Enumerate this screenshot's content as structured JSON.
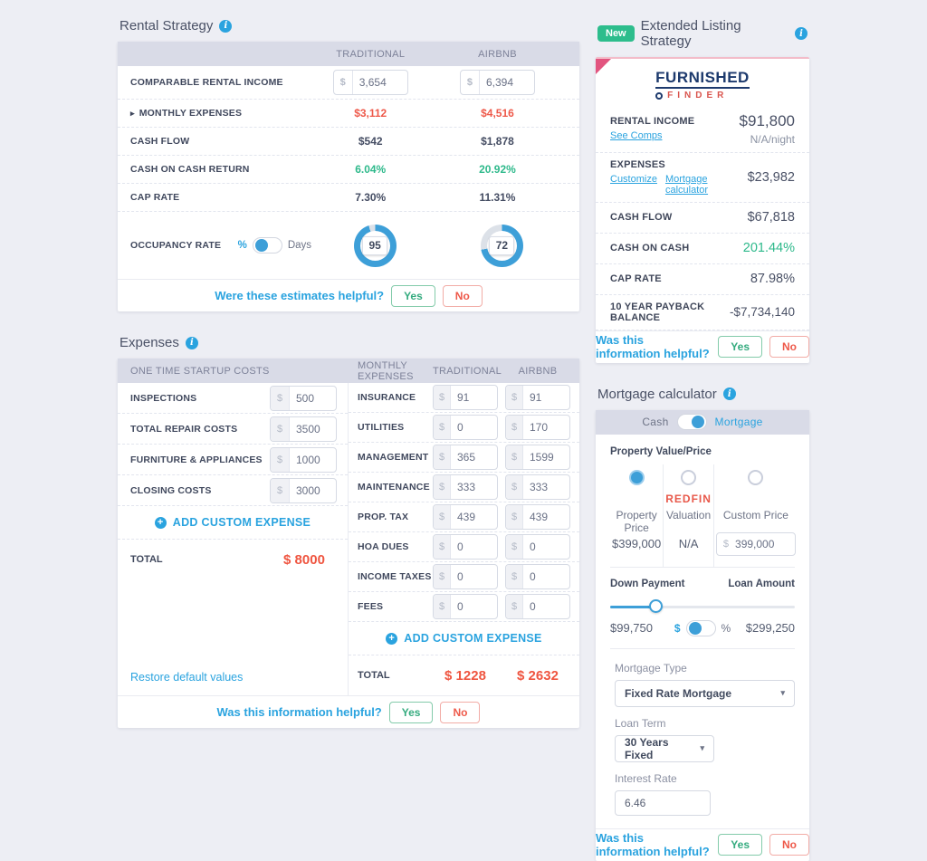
{
  "accent_colors": {
    "blue": "#2aa3df",
    "toggle_blue": "#3d9fd8",
    "red": "#ee594a",
    "green": "#2eb98b",
    "pink_corner": "#e2547f",
    "badge_green": "#2dbd8c"
  },
  "rental_strategy": {
    "title": "Rental Strategy",
    "col_traditional": "TRADITIONAL",
    "col_airbnb": "AIRBNB",
    "income": {
      "label": "COMPARABLE RENTAL INCOME",
      "currency": "$",
      "traditional": "3,654",
      "airbnb": "6,394"
    },
    "rows": [
      {
        "label": "MONTHLY EXPENSES",
        "traditional": "$3,112",
        "airbnb": "$4,516"
      },
      {
        "label": "CASH FLOW",
        "traditional": "$542",
        "airbnb": "$1,878"
      },
      {
        "label": "CASH ON CASH RETURN",
        "traditional": "6.04%",
        "airbnb": "20.92%"
      },
      {
        "label": "CAP RATE",
        "traditional": "7.30%",
        "airbnb": "11.31%"
      }
    ],
    "occupancy": {
      "label": "OCCUPANCY RATE",
      "unit_percent": "%",
      "unit_days": "Days",
      "traditional": 95,
      "airbnb": 72
    },
    "feedback": {
      "question": "Were these estimates helpful?",
      "yes": "Yes",
      "no": "No"
    }
  },
  "extended_listing": {
    "badge": "New",
    "title": "Extended Listing Strategy",
    "logo_top": "FURNISHED",
    "logo_bottom": "FINDER",
    "rental_income": {
      "label": "RENTAL INCOME",
      "link": "See Comps",
      "value": "$91,800",
      "sub": "N/A/night"
    },
    "expenses": {
      "label": "EXPENSES",
      "link_customize": "Customize",
      "link_mortgage": "Mortgage calculator",
      "value": "$23,982"
    },
    "rows": [
      {
        "label": "CASH FLOW",
        "value": "$67,818"
      },
      {
        "label": "CASH ON CASH",
        "value": "201.44%"
      },
      {
        "label": "CAP RATE",
        "value": "87.98%"
      },
      {
        "label": "10 YEAR PAYBACK BALANCE",
        "value": "-$7,734,140"
      }
    ],
    "feedback": {
      "question": "Was this information helpful?",
      "yes": "Yes",
      "no": "No"
    }
  },
  "expenses_panel": {
    "title": "Expenses",
    "startup_header": "ONE TIME STARTUP COSTS",
    "monthly_header": "MONTHLY EXPENSES",
    "col_traditional": "TRADITIONAL",
    "col_airbnb": "AIRBNB",
    "currency": "$",
    "startup_rows": [
      {
        "label": "INSPECTIONS",
        "value": "500"
      },
      {
        "label": "TOTAL REPAIR COSTS",
        "value": "3500"
      },
      {
        "label": "FURNITURE & APPLIANCES",
        "value": "1000"
      },
      {
        "label": "CLOSING COSTS",
        "value": "3000"
      }
    ],
    "monthly_rows": [
      {
        "label": "INSURANCE",
        "traditional": "91",
        "airbnb": "91"
      },
      {
        "label": "UTILITIES",
        "traditional": "0",
        "airbnb": "170"
      },
      {
        "label": "MANAGEMENT",
        "traditional": "365",
        "airbnb": "1599"
      },
      {
        "label": "MAINTENANCE",
        "traditional": "333",
        "airbnb": "333"
      },
      {
        "label": "PROP. TAX",
        "traditional": "439",
        "airbnb": "439"
      },
      {
        "label": "HOA DUES",
        "traditional": "0",
        "airbnb": "0"
      },
      {
        "label": "INCOME TAXES",
        "traditional": "0",
        "airbnb": "0"
      },
      {
        "label": "FEES",
        "traditional": "0",
        "airbnb": "0"
      }
    ],
    "add_custom": "ADD CUSTOM EXPENSE",
    "startup_total": {
      "label": "TOTAL",
      "value": "$ 8000"
    },
    "monthly_total": {
      "label": "TOTAL",
      "traditional": "$ 1228",
      "airbnb": "$ 2632"
    },
    "restore_link": "Restore default values",
    "feedback": {
      "question": "Was this information helpful?",
      "yes": "Yes",
      "no": "No"
    }
  },
  "mortgage": {
    "title": "Mortgage calculator",
    "toggle": {
      "left": "Cash",
      "right": "Mortgage"
    },
    "property": {
      "label": "Property Value/Price",
      "options": [
        {
          "label": "Property Price",
          "value": "$399,000"
        },
        {
          "brand": "Redfin",
          "label": "Valuation",
          "value": "N/A"
        },
        {
          "label": "Custom Price",
          "currency": "$",
          "input": "399,000"
        }
      ]
    },
    "down_payment": {
      "label": "Down Payment",
      "loan_label": "Loan Amount",
      "down_value": "$99,750",
      "loan_value": "$299,250",
      "unit_dollar": "$",
      "unit_percent": "%",
      "slider_percent": 25
    },
    "mortgage_type": {
      "label": "Mortgage Type",
      "value": "Fixed Rate Mortgage"
    },
    "loan_term": {
      "label": "Loan Term",
      "value": "30 Years Fixed"
    },
    "interest_rate": {
      "label": "Interest Rate",
      "value": "6.46"
    },
    "feedback": {
      "question": "Was this information helpful?",
      "yes": "Yes",
      "no": "No"
    }
  }
}
